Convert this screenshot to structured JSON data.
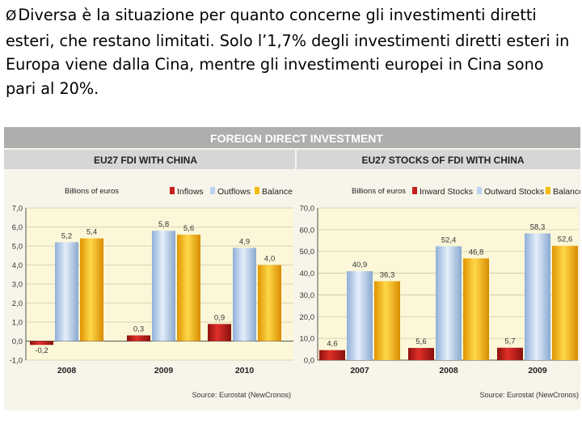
{
  "slide": {
    "bullet_marker": "Ø",
    "bullet_text": "Diversa è la situazione per quanto concerne gli investimenti diretti esteri, che restano limitati. Solo l’1,7% degli investimenti diretti esteri in Europa viene dalla Cina, mentre gli investimenti europei in Cina sono pari al 20%."
  },
  "figure": {
    "header": "FOREIGN DIRECT INVESTMENT",
    "source_left": "Source: Eurostat (NewCronos)",
    "source_right": "Source: Eurostat (NewCronos)",
    "colors": {
      "series1": "#c8201c",
      "series2": "#bcd3ef",
      "series3": "#f4bc12",
      "header_bg": "#aeaeae",
      "subheader_bg": "#d6d6d6",
      "plot_bg": "#fbf7d8",
      "grid": "#cfc9a6"
    }
  },
  "chart_data": [
    {
      "type": "bar",
      "title": "EU27 FDI WITH CHINA",
      "ylabel": "Billions of euros",
      "categories": [
        "2008",
        "2009",
        "2010"
      ],
      "series": [
        {
          "name": "Inflows",
          "values": [
            -0.2,
            0.3,
            0.9
          ],
          "labels": [
            "-0,2",
            "0,3",
            "0,9"
          ]
        },
        {
          "name": "Outflows",
          "values": [
            5.2,
            5.8,
            4.9
          ],
          "labels": [
            "5,2",
            "5,8",
            "4,9"
          ]
        },
        {
          "name": "Balance",
          "values": [
            5.4,
            5.6,
            4.0
          ],
          "labels": [
            "5,4",
            "5,6",
            "4,0"
          ]
        }
      ],
      "ylim": [
        -1.0,
        7.0
      ],
      "yticks": [
        "-1,0",
        "0,0",
        "1,0",
        "2,0",
        "3,0",
        "4,0",
        "5,0",
        "6,0",
        "7,0"
      ],
      "legend": "top-right",
      "grid": true
    },
    {
      "type": "bar",
      "title": "EU27 STOCKS OF FDI WITH CHINA",
      "ylabel": "Billions of euros",
      "categories": [
        "2007",
        "2008",
        "2009"
      ],
      "series": [
        {
          "name": "Inward Stocks",
          "values": [
            4.6,
            5.6,
            5.7
          ],
          "labels": [
            "4,6",
            "5,6",
            "5,7"
          ]
        },
        {
          "name": "Outward Stocks",
          "values": [
            40.9,
            52.4,
            58.3
          ],
          "labels": [
            "40,9",
            "52,4",
            "58,3"
          ]
        },
        {
          "name": "Balance",
          "values": [
            36.3,
            46.8,
            52.6
          ],
          "labels": [
            "36,3",
            "46,8",
            "52,6"
          ]
        }
      ],
      "ylim": [
        0,
        70
      ],
      "yticks": [
        "0,0",
        "10,0",
        "20,0",
        "30,0",
        "40,0",
        "50,0",
        "60,0",
        "70,0"
      ],
      "legend": "top-right",
      "grid": true
    }
  ]
}
